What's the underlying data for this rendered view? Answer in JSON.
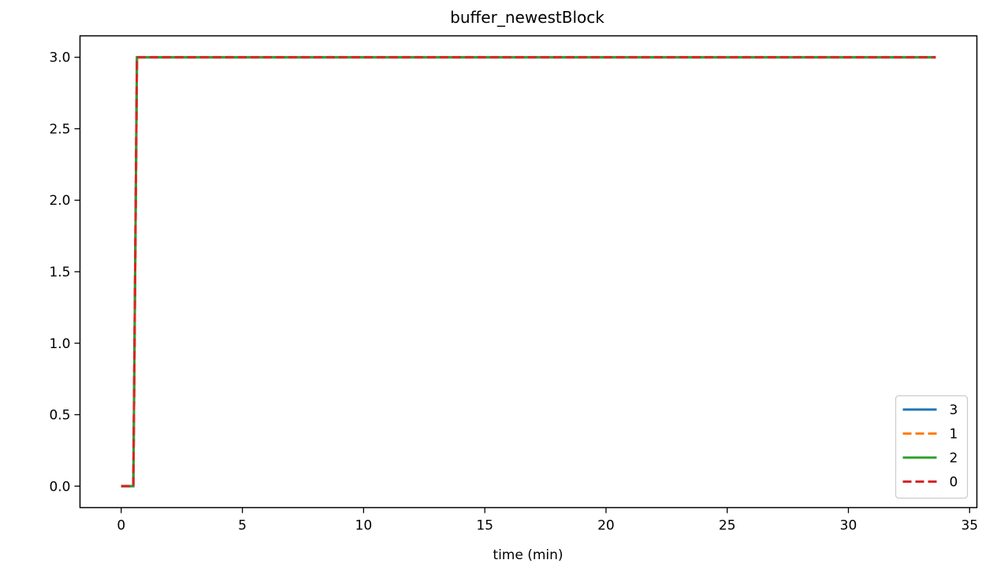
{
  "chart_data": {
    "type": "line",
    "title": "buffer_newestBlock",
    "xlabel": "time (min)",
    "ylabel": "",
    "xlim": [
      -1.7,
      35.3
    ],
    "ylim": [
      -0.15,
      3.15
    ],
    "x_ticks": [
      0,
      5,
      10,
      15,
      20,
      25,
      30,
      35
    ],
    "x_tick_labels": [
      "0",
      "5",
      "10",
      "15",
      "20",
      "25",
      "30",
      "35"
    ],
    "y_ticks": [
      0.0,
      0.5,
      1.0,
      1.5,
      2.0,
      2.5,
      3.0
    ],
    "y_tick_labels": [
      "0.0",
      "0.5",
      "1.0",
      "1.5",
      "2.0",
      "2.5",
      "3.0"
    ],
    "grid": false,
    "legend_position": "lower-right",
    "series": [
      {
        "name": "3",
        "color": "#1f77b4",
        "linestyle": "solid",
        "x": [
          0,
          0.5,
          0.65,
          33.6
        ],
        "y": [
          0,
          0,
          3,
          3
        ]
      },
      {
        "name": "1",
        "color": "#ff7f0e",
        "linestyle": "dashed",
        "x": [
          0,
          0.5,
          0.65,
          33.6
        ],
        "y": [
          0,
          0,
          3,
          3
        ]
      },
      {
        "name": "2",
        "color": "#2ca02c",
        "linestyle": "solid",
        "x": [
          0,
          0.5,
          0.65,
          33.6
        ],
        "y": [
          0,
          0,
          3,
          3
        ]
      },
      {
        "name": "0",
        "color": "#d62728",
        "linestyle": "dashed",
        "x": [
          0,
          0.5,
          0.65,
          33.6
        ],
        "y": [
          0,
          0,
          3,
          3
        ]
      }
    ]
  }
}
